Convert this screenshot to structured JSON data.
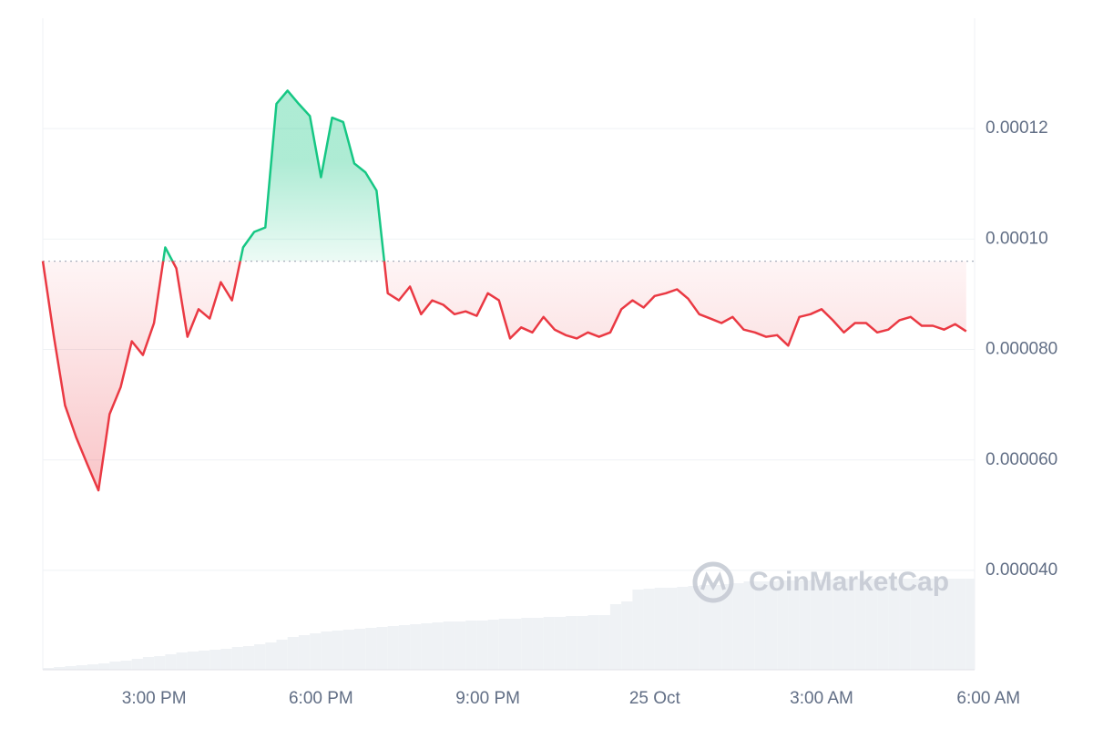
{
  "chart_data": {
    "type": "line",
    "watermark": "CoinMarketCap",
    "baseline": 9.6e-05,
    "x": [
      13.0,
      13.2,
      13.4,
      13.6,
      13.8,
      14.0,
      14.2,
      14.4,
      14.6,
      14.8,
      15.0,
      15.2,
      15.4,
      15.6,
      15.8,
      16.0,
      16.2,
      16.4,
      16.6,
      16.8,
      17.0,
      17.2,
      17.4,
      17.6,
      17.8,
      18.0,
      18.2,
      18.4,
      18.6,
      18.8,
      19.0,
      19.2,
      19.4,
      19.6,
      19.8,
      20.0,
      20.2,
      20.4,
      20.6,
      20.8,
      21.0,
      21.2,
      21.4,
      21.6,
      21.8,
      22.0,
      22.2,
      22.4,
      22.6,
      22.8,
      23.0,
      23.2,
      23.4,
      23.6,
      23.8,
      24.0,
      24.2,
      24.4,
      24.6,
      24.8,
      25.0,
      25.2,
      25.4,
      25.6,
      25.8,
      26.0,
      26.2,
      26.4,
      26.6,
      26.8,
      27.0,
      27.2,
      27.4,
      27.6,
      27.8,
      28.0,
      28.2,
      28.4,
      28.6,
      28.8,
      29.0,
      29.2,
      29.4,
      29.6
    ],
    "series": [
      {
        "colors": {
          "above": "#16c784",
          "below": "#ea3943"
        },
        "values": [
          9.6e-05,
          8.23e-05,
          6.99e-05,
          6.41e-05,
          5.92e-05,
          5.45e-05,
          6.83e-05,
          7.32e-05,
          8.15e-05,
          7.9e-05,
          8.48e-05,
          9.85e-05,
          9.47e-05,
          8.23e-05,
          8.73e-05,
          8.56e-05,
          9.22e-05,
          8.89e-05,
          9.85e-05,
          0.0001013,
          0.0001021,
          0.0001245,
          0.0001269,
          0.0001245,
          0.0001223,
          0.0001112,
          0.000122,
          0.0001212,
          0.0001137,
          0.0001121,
          0.0001088,
          9.02e-05,
          8.89e-05,
          9.14e-05,
          8.64e-05,
          8.89e-05,
          8.81e-05,
          8.64e-05,
          8.69e-05,
          8.61e-05,
          9.02e-05,
          8.89e-05,
          8.2e-05,
          8.4e-05,
          8.31e-05,
          8.59e-05,
          8.36e-05,
          8.26e-05,
          8.2e-05,
          8.31e-05,
          8.23e-05,
          8.31e-05,
          8.73e-05,
          8.89e-05,
          8.76e-05,
          8.97e-05,
          9.02e-05,
          9.09e-05,
          8.92e-05,
          8.64e-05,
          8.56e-05,
          8.48e-05,
          8.59e-05,
          8.36e-05,
          8.31e-05,
          8.23e-05,
          8.26e-05,
          8.07e-05,
          8.59e-05,
          8.64e-05,
          8.73e-05,
          8.53e-05,
          8.31e-05,
          8.48e-05,
          8.48e-05,
          8.31e-05,
          8.36e-05,
          8.53e-05,
          8.59e-05,
          8.43e-05,
          8.43e-05,
          8.36e-05,
          8.46e-05,
          8.33e-05
        ]
      }
    ],
    "volume": {
      "color": "#eff2f5",
      "values": [
        2,
        3,
        4,
        5,
        6,
        7,
        9,
        10,
        12,
        14,
        15,
        17,
        19,
        20,
        21,
        22,
        23,
        25,
        26,
        28,
        30,
        33,
        36,
        38,
        40,
        42,
        43,
        44,
        45,
        46,
        47,
        48,
        49,
        50,
        51,
        52,
        53,
        53,
        54,
        54,
        55,
        56,
        56,
        57,
        57,
        58,
        58,
        59,
        59,
        60,
        60,
        72,
        75,
        88,
        89,
        90,
        90,
        91,
        92,
        93,
        93,
        94,
        95,
        97,
        97,
        97,
        98,
        98,
        98,
        99,
        99,
        100,
        100,
        100,
        100,
        100,
        100,
        100,
        100,
        100,
        100,
        100,
        100,
        100
      ]
    },
    "xlim": [
      13,
      29.75
    ],
    "xticks": [
      {
        "value": 15,
        "label": "3:00 PM"
      },
      {
        "value": 18,
        "label": "6:00 PM"
      },
      {
        "value": 21,
        "label": "9:00 PM"
      },
      {
        "value": 24,
        "label": "25 Oct"
      },
      {
        "value": 27,
        "label": "3:00 AM"
      },
      {
        "value": 30,
        "label": "6:00 AM"
      }
    ],
    "ylim": [
      2.2e-05,
      0.00014
    ],
    "yticks": [
      {
        "value": 4e-05,
        "label": "0.000040"
      },
      {
        "value": 6e-05,
        "label": "0.000060"
      },
      {
        "value": 8e-05,
        "label": "0.000080"
      },
      {
        "value": 0.0001,
        "label": "0.00010"
      },
      0.00012
    ],
    "grid": true
  }
}
